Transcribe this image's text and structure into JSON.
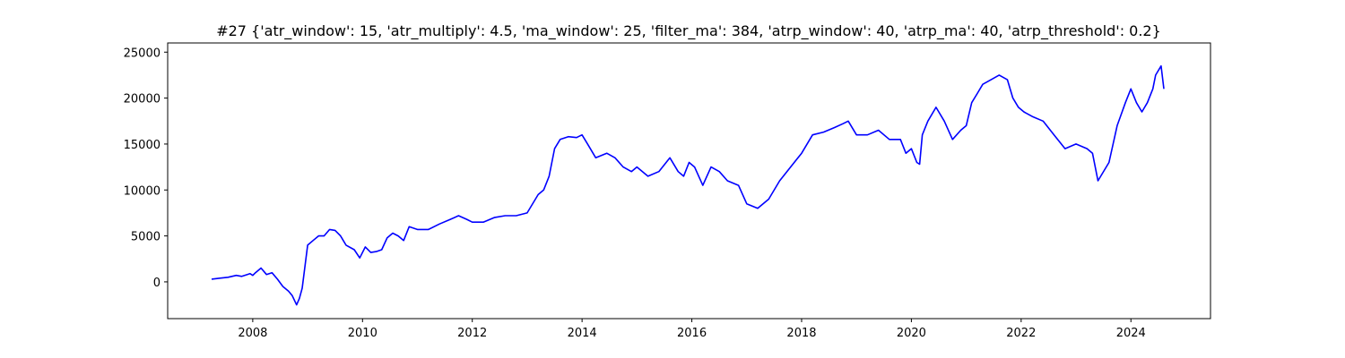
{
  "chart_data": {
    "type": "line",
    "title": "#27 {'atr_window': 15, 'atr_multiply': 4.5, 'ma_window': 25, 'filter_ma': 384, 'atrp_window': 40, 'atrp_ma': 40, 'atrp_threshold': 0.2}",
    "xlabel": "",
    "ylabel": "",
    "xlim": [
      2006.45,
      2025.45
    ],
    "ylim": [
      -4000,
      26000
    ],
    "x_ticks": [
      {
        "value": 2008,
        "label": "2008"
      },
      {
        "value": 2010,
        "label": "2010"
      },
      {
        "value": 2012,
        "label": "2012"
      },
      {
        "value": 2014,
        "label": "2014"
      },
      {
        "value": 2016,
        "label": "2016"
      },
      {
        "value": 2018,
        "label": "2018"
      },
      {
        "value": 2020,
        "label": "2020"
      },
      {
        "value": 2022,
        "label": "2022"
      },
      {
        "value": 2024,
        "label": "2024"
      }
    ],
    "y_ticks": [
      {
        "value": 0,
        "label": "0"
      },
      {
        "value": 5000,
        "label": "5000"
      },
      {
        "value": 10000,
        "label": "10000"
      },
      {
        "value": 15000,
        "label": "15000"
      },
      {
        "value": 20000,
        "label": "20000"
      },
      {
        "value": 25000,
        "label": "25000"
      }
    ],
    "grid": false,
    "legend": "none",
    "series": [
      {
        "color": "#0000ff",
        "x": [
          2007.25,
          2007.4,
          2007.55,
          2007.7,
          2007.8,
          2007.9,
          2007.95,
          2008.0,
          2008.05,
          2008.15,
          2008.25,
          2008.35,
          2008.45,
          2008.55,
          2008.65,
          2008.72,
          2008.8,
          2008.85,
          2008.9,
          2009.0,
          2009.1,
          2009.2,
          2009.3,
          2009.4,
          2009.5,
          2009.6,
          2009.7,
          2009.85,
          2009.95,
          2010.05,
          2010.15,
          2010.25,
          2010.35,
          2010.45,
          2010.55,
          2010.65,
          2010.75,
          2010.85,
          2011.0,
          2011.2,
          2011.4,
          2011.6,
          2011.75,
          2011.9,
          2012.0,
          2012.2,
          2012.4,
          2012.6,
          2012.8,
          2013.0,
          2013.2,
          2013.3,
          2013.4,
          2013.5,
          2013.6,
          2013.75,
          2013.9,
          2014.0,
          2014.1,
          2014.25,
          2014.45,
          2014.6,
          2014.75,
          2014.9,
          2015.0,
          2015.2,
          2015.4,
          2015.6,
          2015.75,
          2015.85,
          2015.95,
          2016.05,
          2016.2,
          2016.35,
          2016.5,
          2016.65,
          2016.85,
          2017.0,
          2017.2,
          2017.4,
          2017.6,
          2017.8,
          2018.0,
          2018.2,
          2018.4,
          2018.6,
          2018.75,
          2018.85,
          2019.0,
          2019.2,
          2019.4,
          2019.6,
          2019.8,
          2019.9,
          2020.0,
          2020.1,
          2020.15,
          2020.2,
          2020.3,
          2020.45,
          2020.6,
          2020.75,
          2020.9,
          2021.0,
          2021.1,
          2021.2,
          2021.3,
          2021.45,
          2021.6,
          2021.75,
          2021.85,
          2021.95,
          2022.05,
          2022.2,
          2022.4,
          2022.6,
          2022.8,
          2023.0,
          2023.2,
          2023.3,
          2023.4,
          2023.6,
          2023.75,
          2023.9,
          2024.0,
          2024.1,
          2024.2,
          2024.3,
          2024.4,
          2024.45,
          2024.55,
          2024.6
        ],
        "y": [
          300,
          400,
          500,
          700,
          600,
          800,
          900,
          700,
          1000,
          1500,
          800,
          1000,
          300,
          -500,
          -1000,
          -1500,
          -2500,
          -1800,
          -700,
          4000,
          4500,
          5000,
          5000,
          5700,
          5600,
          5000,
          4000,
          3500,
          2600,
          3800,
          3200,
          3300,
          3500,
          4800,
          5300,
          5000,
          4500,
          6000,
          5700,
          5700,
          6300,
          6800,
          7200,
          6800,
          6500,
          6500,
          7000,
          7200,
          7200,
          7500,
          9500,
          10000,
          11500,
          14500,
          15500,
          15800,
          15700,
          16000,
          15000,
          13500,
          14000,
          13500,
          12500,
          12000,
          12500,
          11500,
          12000,
          13500,
          12000,
          11500,
          13000,
          12500,
          10500,
          12500,
          12000,
          11000,
          10500,
          8500,
          8000,
          9000,
          11000,
          12500,
          14000,
          16000,
          16300,
          16800,
          17200,
          17500,
          16000,
          16000,
          16500,
          15500,
          15500,
          14000,
          14500,
          13000,
          12800,
          16000,
          17500,
          19000,
          17500,
          15500,
          16500,
          17000,
          19500,
          20500,
          21500,
          22000,
          22500,
          22000,
          20000,
          19000,
          18500,
          18000,
          17500,
          16000,
          14500,
          15000,
          14500,
          14000,
          11000,
          13000,
          17000,
          19500,
          21000,
          19500,
          18500,
          19500,
          21000,
          22500,
          23500,
          21000
        ]
      }
    ]
  }
}
